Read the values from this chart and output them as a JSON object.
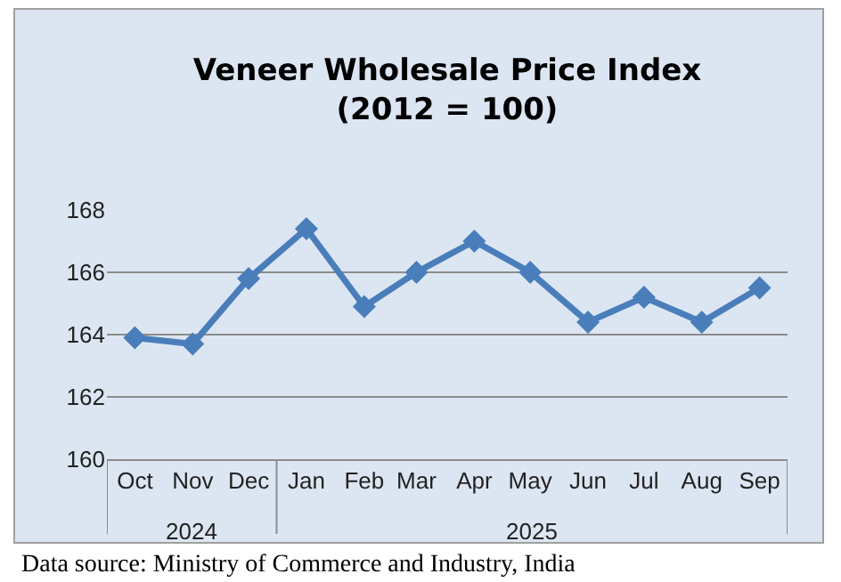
{
  "chart_data": {
    "type": "line",
    "title": "Veneer Wholesale Price Index\n(2012 = 100)",
    "x": [
      "2024-10",
      "2024-11",
      "2024-12",
      "2025-01",
      "2025-02",
      "2025-03",
      "2025-04",
      "2025-05",
      "2025-06",
      "2025-07",
      "2025-08",
      "2025-09"
    ],
    "series": [
      {
        "color": "#4a7ebb",
        "values": [
          163.9,
          163.7,
          165.8,
          167.4,
          164.9,
          166.0,
          167.0,
          166.0,
          164.4,
          165.2,
          164.4,
          165.5
        ]
      }
    ],
    "xlim": [
      "2024-09-16",
      "2025-09-16"
    ],
    "xticks": [
      {
        "value": "2024-10",
        "label": "Oct"
      },
      {
        "value": "2024-11",
        "label": "Nov"
      },
      {
        "value": "2024-12",
        "label": "Dec"
      },
      {
        "value": "2025-01",
        "label": "Jan"
      },
      {
        "value": "2025-02",
        "label": "Feb"
      },
      {
        "value": "2025-03",
        "label": "Mar"
      },
      {
        "value": "2025-04",
        "label": "Apr"
      },
      {
        "value": "2025-05",
        "label": "May"
      },
      {
        "value": "2025-06",
        "label": "Jun"
      },
      {
        "value": "2025-07",
        "label": "Jul"
      },
      {
        "value": "2025-08",
        "label": "Aug"
      },
      {
        "value": "2025-09",
        "label": "Sep"
      }
    ],
    "ylim": [
      160,
      168
    ],
    "yticks": [
      160,
      162,
      164,
      166,
      168
    ],
    "grid": "y",
    "marker": "diamond",
    "line_style": "solid",
    "annotations": [
      "2024",
      "2025",
      "Data source: Ministry of Commerce and Industry, India"
    ]
  }
}
